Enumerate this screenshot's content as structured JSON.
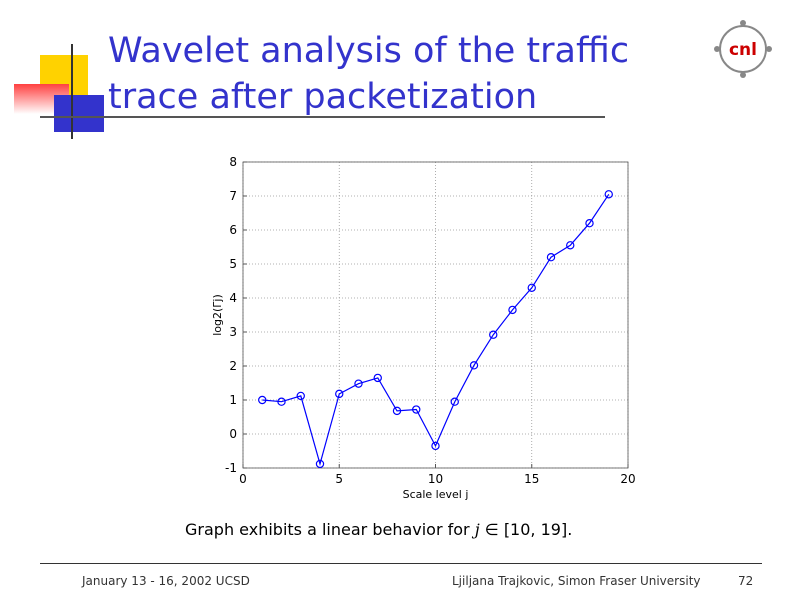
{
  "slide": {
    "title_line1": "Wavelet analysis of the traffic",
    "title_line2": "trace after packetization",
    "caption_prefix": "Graph exhibits a linear behavior for ",
    "caption_var": "j",
    "caption_symbol": "∈",
    "caption_range": "[10, 19].",
    "logo_text": "cnl",
    "footer_left": "January 13 - 16, 2002 UCSD",
    "footer_center": "Ljiljana Trajkovic, Simon Fraser University",
    "footer_page": "72"
  },
  "colors": {
    "title": "#3333cc",
    "line": "#0000ff",
    "logo": "#cc0000",
    "deco_yellow": "#ffd200",
    "deco_red": "#ff4040",
    "deco_blue": "#3333cc"
  },
  "chart_data": {
    "type": "line",
    "xlabel": "Scale level j",
    "ylabel": "log2(Γj)",
    "xlim": [
      0,
      20
    ],
    "ylim": [
      -1,
      8
    ],
    "xticks": [
      0,
      5,
      10,
      15,
      20
    ],
    "yticks": [
      -1,
      0,
      1,
      2,
      3,
      4,
      5,
      6,
      7,
      8
    ],
    "grid": true,
    "marker": "circle",
    "series": [
      {
        "x": [
          1,
          2,
          3,
          4,
          5,
          6,
          7,
          8,
          9,
          10,
          11,
          12,
          13,
          14,
          15,
          16,
          17,
          18,
          19
        ],
        "y": [
          1.0,
          0.95,
          1.12,
          -0.88,
          1.18,
          1.48,
          1.65,
          0.68,
          0.72,
          -0.35,
          0.95,
          2.02,
          2.92,
          3.65,
          4.3,
          5.2,
          5.55,
          6.2,
          7.05
        ]
      }
    ]
  }
}
